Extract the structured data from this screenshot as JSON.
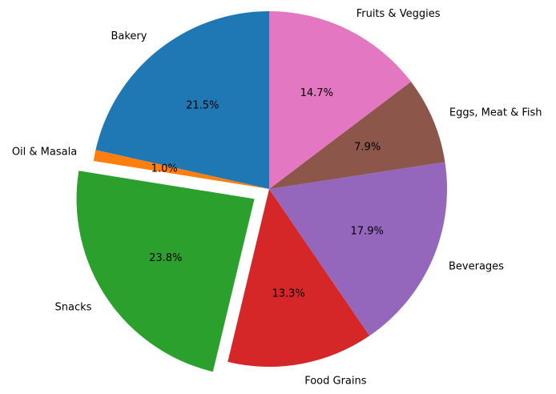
{
  "chart_data": {
    "type": "pie",
    "title": "",
    "slices": [
      {
        "label": "Bakery",
        "value": 21.5,
        "pct_label": "21.5%",
        "color": "#1f77b4",
        "exploded": false
      },
      {
        "label": "Oil & Masala",
        "value": 1.0,
        "pct_label": "1.0%",
        "color": "#ff7f0e",
        "exploded": false
      },
      {
        "label": "Snacks",
        "value": 23.8,
        "pct_label": "23.8%",
        "color": "#2ca02c",
        "exploded": true
      },
      {
        "label": "Food Grains",
        "value": 13.3,
        "pct_label": "13.3%",
        "color": "#d62728",
        "exploded": false
      },
      {
        "label": "Beverages",
        "value": 17.9,
        "pct_label": "17.9%",
        "color": "#9467bd",
        "exploded": false
      },
      {
        "label": "Eggs, Meat & Fish",
        "value": 7.9,
        "pct_label": "7.9%",
        "color": "#8c564b",
        "exploded": false
      },
      {
        "label": "Fruits & Veggies",
        "value": 14.7,
        "pct_label": "14.7%",
        "color": "#e377c2",
        "exploded": false
      }
    ],
    "start_angle_deg": 90,
    "direction": "counterclockwise",
    "legend": "none"
  }
}
